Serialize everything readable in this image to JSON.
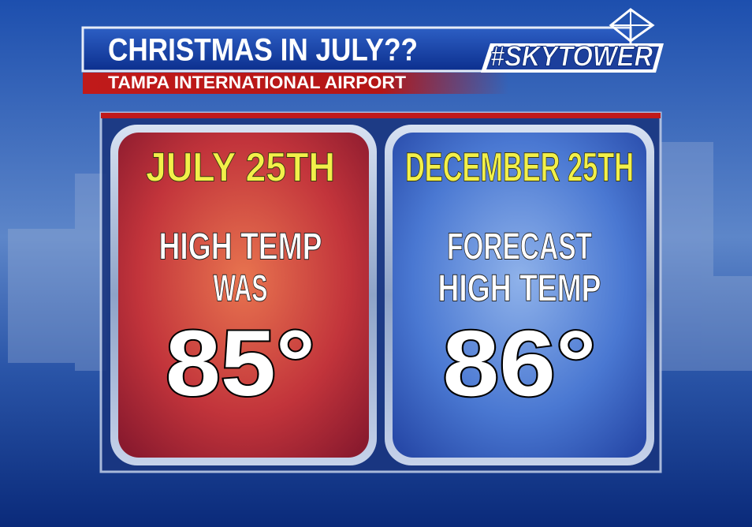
{
  "header": {
    "title": "CHRISTMAS IN JULY??",
    "subtitle": "TAMPA INTERNATIONAL AIRPORT",
    "logo": "#SKYTOWER"
  },
  "panels": [
    {
      "date": "JULY 25TH",
      "label_lines": [
        "HIGH TEMP",
        "WAS"
      ],
      "value": "85°"
    },
    {
      "date": "DECEMBER 25TH",
      "label_lines": [
        "FORECAST",
        "HIGH TEMP"
      ],
      "value": "86°"
    }
  ]
}
